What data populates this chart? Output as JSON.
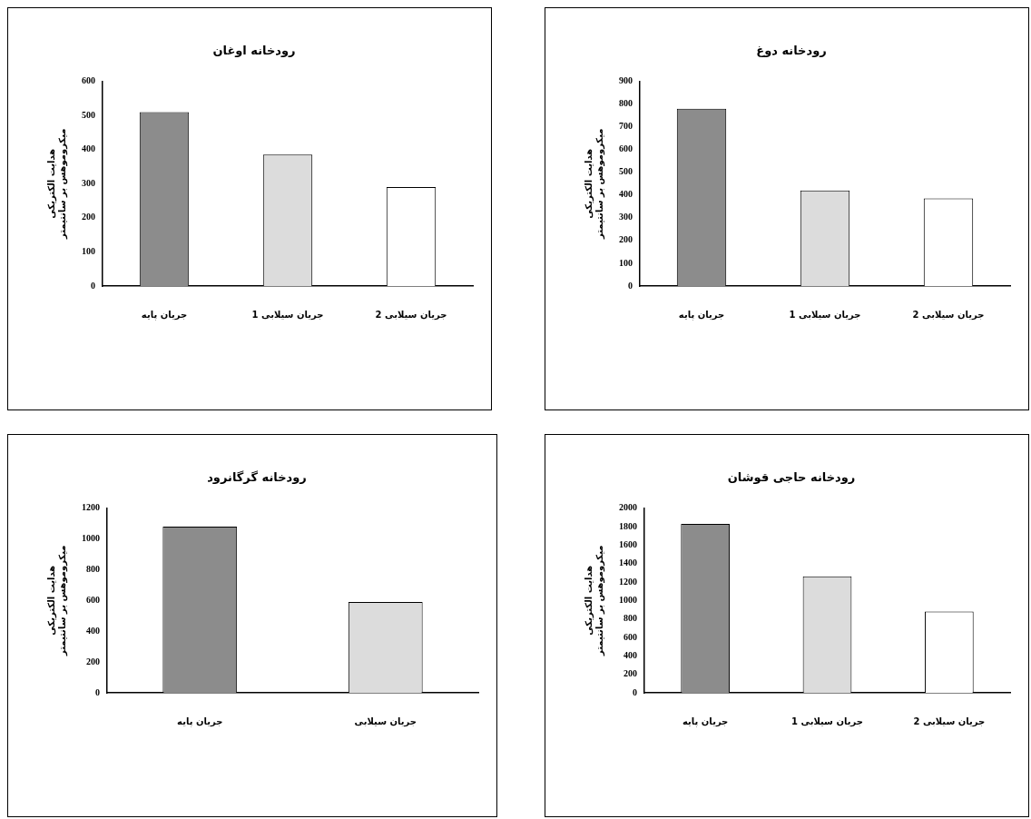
{
  "chart_data": [
    {
      "type": "bar",
      "title": "رودخانه اوغان",
      "ylabel": "هدایت الکتریکی\nمیکروموهس بر سانتیمتر",
      "categories": [
        "جریان پایه",
        "جریان سیلابی 1",
        "جریان سیلابی 2"
      ],
      "values": [
        510,
        385,
        290
      ],
      "colors": [
        "#8c8c8c",
        "#dcdcdc",
        "#ffffff"
      ],
      "ylim": [
        0,
        600
      ],
      "yticks": [
        0,
        100,
        200,
        300,
        400,
        500,
        600
      ],
      "grid": false,
      "legend": false
    },
    {
      "type": "bar",
      "title": "رودخانه دوغ",
      "ylabel": "هدایت الکتریکی\nمیکروموهس بر سانتیمتر",
      "categories": [
        "جریان پایه",
        "جریان سیلابی 1",
        "جریان سیلابی 2"
      ],
      "values": [
        780,
        420,
        385
      ],
      "colors": [
        "#8c8c8c",
        "#dcdcdc",
        "#ffffff"
      ],
      "ylim": [
        0,
        900
      ],
      "yticks": [
        0,
        100,
        200,
        300,
        400,
        500,
        600,
        700,
        800,
        900
      ],
      "grid": false,
      "legend": false
    },
    {
      "type": "bar",
      "title": "رودخانه گرگانرود",
      "ylabel": "هدایت الکتریکی\nمیکروموهس بر سانتیمتر",
      "categories": [
        "جریان پایه",
        "جریان سیلابی"
      ],
      "values": [
        1080,
        590
      ],
      "colors": [
        "#8c8c8c",
        "#dcdcdc"
      ],
      "ylim": [
        0,
        1200
      ],
      "yticks": [
        0,
        200,
        400,
        600,
        800,
        1000,
        1200
      ],
      "grid": false,
      "legend": false
    },
    {
      "type": "bar",
      "title": "رودخانه حاجی قوشان",
      "ylabel": "هدایت الکتریکی\nمیکروموهس بر سانتیمتر",
      "categories": [
        "جریان پایه",
        "جریان سیلابی 1",
        "جریان سیلابی 2"
      ],
      "values": [
        1830,
        1260,
        880
      ],
      "colors": [
        "#8c8c8c",
        "#dcdcdc",
        "#ffffff"
      ],
      "ylim": [
        0,
        2000
      ],
      "yticks": [
        0,
        200,
        400,
        600,
        800,
        1000,
        1200,
        1400,
        1600,
        1800,
        2000
      ],
      "grid": false,
      "legend": false
    }
  ]
}
